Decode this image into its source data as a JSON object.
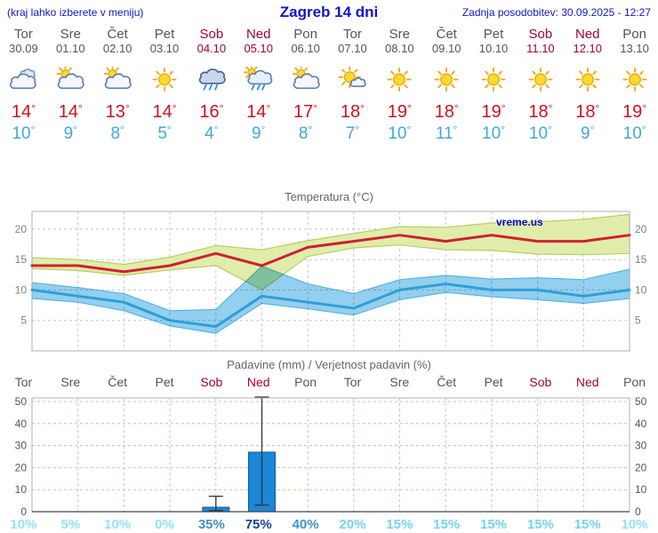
{
  "brand": "vreme.us",
  "header": {
    "note": "(kraj lahko izberete v meniju)",
    "title": "Zagreb 14 dni",
    "updated": "Zadnja posodobitev: 30.09.2025 - 12:27"
  },
  "colors": {
    "accent_blue": "#1414cc",
    "weekday": "#555555",
    "weekend": "#a00235",
    "temp_high": "#cf1022",
    "temp_low": "#3fa8e0",
    "grid_gray": "#c8c8c8",
    "grid_pink": "#e8b4b4",
    "frame": "#b0b0b0",
    "bar_blue": "#1b87d8",
    "prob_faint": "#92e4f8",
    "prob_low": "#74d4f0",
    "prob_mid": "#3f93cf",
    "prob_high": "#1c3f9f"
  },
  "days": [
    {
      "name": "Tor",
      "date": "30.09",
      "weekend": false,
      "icon": "cloudy",
      "high": 14,
      "low": 10
    },
    {
      "name": "Sre",
      "date": "01.10",
      "weekend": false,
      "icon": "partly-cloudy",
      "high": 14,
      "low": 9
    },
    {
      "name": "Čet",
      "date": "02.10",
      "weekend": false,
      "icon": "partly-cloudy",
      "high": 13,
      "low": 8
    },
    {
      "name": "Pet",
      "date": "03.10",
      "weekend": false,
      "icon": "sunny",
      "high": 14,
      "low": 5
    },
    {
      "name": "Sob",
      "date": "04.10",
      "weekend": true,
      "icon": "rain",
      "high": 16,
      "low": 4
    },
    {
      "name": "Ned",
      "date": "05.10",
      "weekend": true,
      "icon": "sun-rain",
      "high": 14,
      "low": 9
    },
    {
      "name": "Pon",
      "date": "06.10",
      "weekend": false,
      "icon": "partly-cloudy",
      "high": 17,
      "low": 8
    },
    {
      "name": "Tor",
      "date": "07.10",
      "weekend": false,
      "icon": "mostly-sunny",
      "high": 18,
      "low": 7
    },
    {
      "name": "Sre",
      "date": "08.10",
      "weekend": false,
      "icon": "sunny",
      "high": 19,
      "low": 10
    },
    {
      "name": "Čet",
      "date": "09.10",
      "weekend": false,
      "icon": "sunny",
      "high": 18,
      "low": 11
    },
    {
      "name": "Pet",
      "date": "10.10",
      "weekend": false,
      "icon": "sunny",
      "high": 19,
      "low": 10
    },
    {
      "name": "Sob",
      "date": "11.10",
      "weekend": true,
      "icon": "sunny",
      "high": 18,
      "low": 10
    },
    {
      "name": "Ned",
      "date": "12.10",
      "weekend": true,
      "icon": "sunny",
      "high": 18,
      "low": 9
    },
    {
      "name": "Pon",
      "date": "13.10",
      "weekend": false,
      "icon": "sunny",
      "high": 19,
      "low": 10
    }
  ],
  "chart_data": [
    {
      "type": "line",
      "title": "Temperatura (°C)",
      "x_labels": [
        "Tor 30.09",
        "Sre 01.10",
        "Čet 02.10",
        "Pet 03.10",
        "Sob 04.10",
        "Ned 05.10",
        "Pon 06.10",
        "Tor 07.10",
        "Sre 08.10",
        "Čet 09.10",
        "Pet 10.10",
        "Sob 11.10",
        "Ned 12.10",
        "Pon 13.10"
      ],
      "ylim": [
        0,
        22.9
      ],
      "yticks": [
        5,
        10,
        15,
        20
      ],
      "grid": true,
      "series": [
        {
          "name": "max-temp",
          "color": "#cf2030",
          "values": [
            14,
            14,
            13,
            14,
            16,
            14,
            17,
            18,
            19,
            18,
            19,
            18,
            18,
            19
          ]
        },
        {
          "name": "min-temp",
          "color": "#2e9fd8",
          "values": [
            10,
            9,
            8,
            5,
            4,
            9,
            8,
            7,
            10,
            11,
            10,
            10,
            9,
            10
          ]
        }
      ],
      "bands": [
        {
          "name": "max-temp-range",
          "fill": "#e0edaa",
          "stroke": "#b5cf62",
          "blend": false,
          "upper": [
            15.3,
            15.0,
            14.2,
            15.4,
            17.3,
            16.6,
            18.1,
            19.3,
            20.4,
            20.3,
            21.0,
            21.2,
            21.6,
            22.4
          ],
          "lower": [
            13.5,
            13.2,
            12.4,
            13.3,
            14.0,
            10.0,
            15.5,
            16.9,
            17.4,
            16.6,
            16.5,
            15.9,
            15.8,
            16.0
          ]
        },
        {
          "name": "min-temp-range",
          "fill": "#93cfee",
          "stroke": "#5ab4e4",
          "blend": true,
          "upper": [
            11.2,
            10.4,
            9.4,
            6.6,
            6.8,
            13.9,
            11.0,
            9.4,
            11.7,
            12.4,
            11.8,
            12.0,
            11.7,
            13.4
          ],
          "lower": [
            8.6,
            8.0,
            6.6,
            4.1,
            2.9,
            7.8,
            6.9,
            5.9,
            8.4,
            9.6,
            8.9,
            8.4,
            7.8,
            8.6
          ]
        }
      ]
    },
    {
      "type": "bar",
      "title": "Padavine (mm) / Verjetnost padavin (%)",
      "x_labels": [
        "Tor",
        "Sre",
        "Čet",
        "Pet",
        "Sob",
        "Ned",
        "Pon",
        "Tor",
        "Sre",
        "Čet",
        "Pet",
        "Sob",
        "Ned",
        "Pon"
      ],
      "ylim": [
        0,
        52
      ],
      "yticks": [
        0,
        10,
        20,
        30,
        40,
        50
      ],
      "grid": true,
      "values": [
        0,
        0,
        0,
        0,
        2,
        27,
        0,
        0,
        0,
        0,
        0,
        0,
        0,
        0
      ],
      "whiskers": [
        {
          "index": 4,
          "min": 0.5,
          "max": 7
        },
        {
          "index": 5,
          "min": 3,
          "max": 52
        }
      ],
      "probabilities": [
        10,
        5,
        10,
        0,
        35,
        75,
        40,
        20,
        15,
        15,
        15,
        15,
        15,
        10
      ],
      "bar_color": "#1b87d8"
    }
  ]
}
